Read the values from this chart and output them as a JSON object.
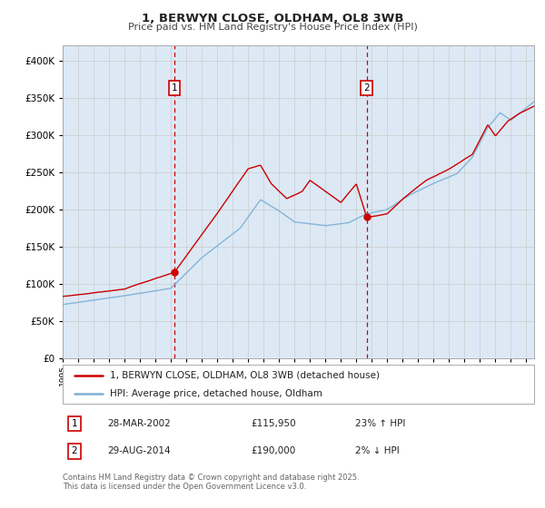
{
  "title": "1, BERWYN CLOSE, OLDHAM, OL8 3WB",
  "subtitle": "Price paid vs. HM Land Registry's House Price Index (HPI)",
  "legend_line1": "1, BERWYN CLOSE, OLDHAM, OL8 3WB (detached house)",
  "legend_line2": "HPI: Average price, detached house, Oldham",
  "sale1_date": "28-MAR-2002",
  "sale1_price": "£115,950",
  "sale1_hpi": "23% ↑ HPI",
  "sale2_date": "29-AUG-2014",
  "sale2_price": "£190,000",
  "sale2_hpi": "2% ↓ HPI",
  "footer": "Contains HM Land Registry data © Crown copyright and database right 2025.\nThis data is licensed under the Open Government Licence v3.0.",
  "sale1_year": 2002.23,
  "sale1_value": 115950,
  "sale2_year": 2014.66,
  "sale2_value": 190000,
  "property_color": "#cc0000",
  "hpi_color": "#7bafd4",
  "background_color": "#dce9f5",
  "plot_bg_color": "#ffffff",
  "grid_color": "#cccccc",
  "vline_color": "#cc0000",
  "ylim_max": 420000,
  "ylim_min": 0,
  "xlim_min": 1995,
  "xlim_max": 2025.5,
  "hpi_keypoints": {
    "1995.0": 72000,
    "1997.0": 78000,
    "1999.0": 84000,
    "2002.0": 94000,
    "2004.0": 135000,
    "2006.5": 175000,
    "2007.8": 213000,
    "2009.0": 198000,
    "2010.0": 183000,
    "2012.0": 178000,
    "2013.5": 182000,
    "2014.66": 194000,
    "2016.0": 200000,
    "2017.5": 220000,
    "2019.0": 235000,
    "2020.5": 248000,
    "2021.5": 270000,
    "2022.5": 310000,
    "2023.3": 330000,
    "2024.0": 320000,
    "2025.5": 345000
  },
  "prop_keypoints": {
    "1995.0": 83000,
    "1997.0": 88000,
    "1999.0": 93000,
    "2002.23": 115950,
    "2005.0": 195000,
    "2007.0": 255000,
    "2007.8": 260000,
    "2008.5": 235000,
    "2009.5": 215000,
    "2010.5": 225000,
    "2011.0": 240000,
    "2012.0": 225000,
    "2013.0": 210000,
    "2014.0": 235000,
    "2014.66": 190000,
    "2016.0": 195000,
    "2017.0": 215000,
    "2018.5": 240000,
    "2020.0": 255000,
    "2021.5": 275000,
    "2022.5": 315000,
    "2023.0": 300000,
    "2023.8": 320000,
    "2024.5": 330000,
    "2025.5": 340000
  }
}
